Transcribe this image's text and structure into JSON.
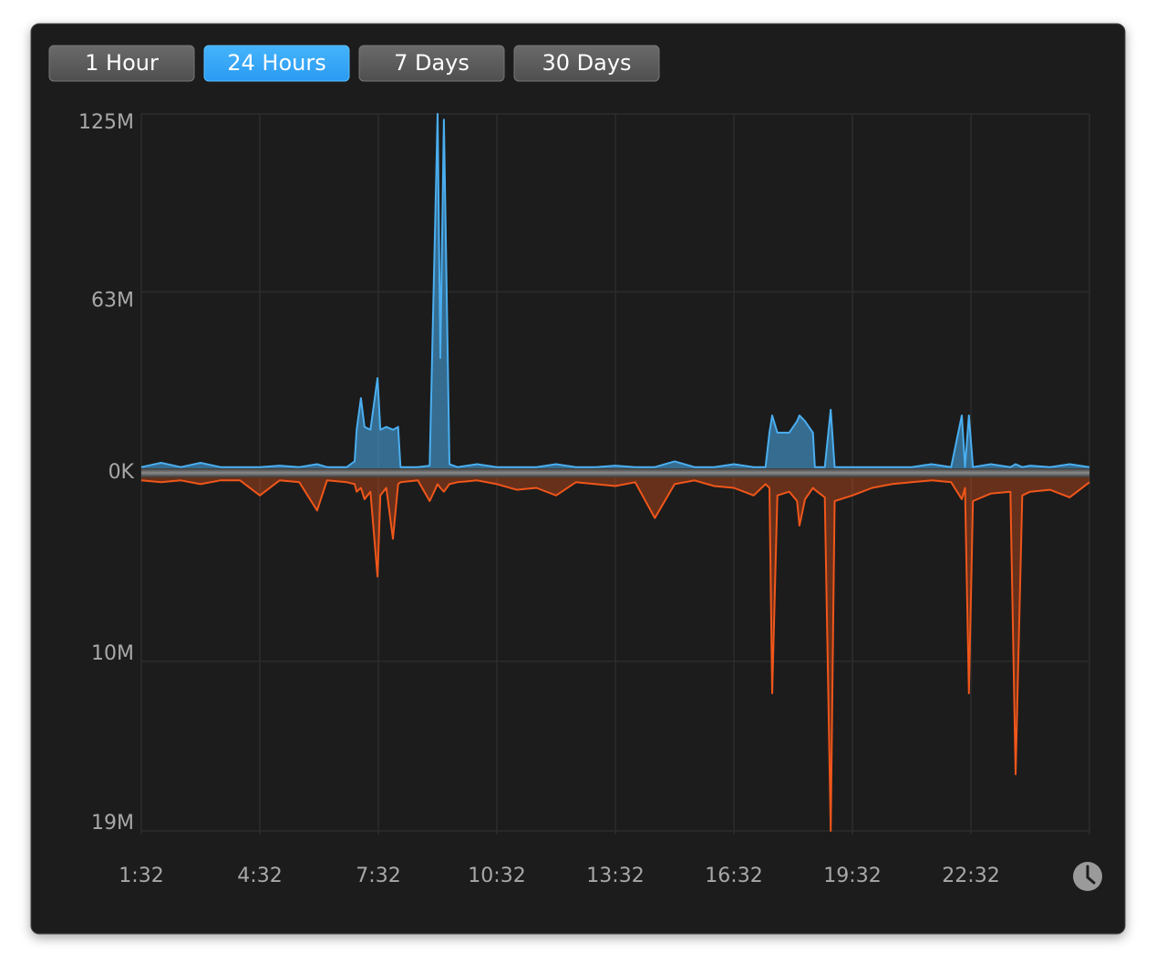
{
  "controls": {
    "buttons": [
      "1 Hour",
      "24 Hours",
      "7 Days",
      "30 Days"
    ],
    "selected": 1
  },
  "chart_data": {
    "type": "mirrored-area",
    "x": [
      0,
      0.5,
      1,
      1.5,
      2,
      2.5,
      3,
      3.5,
      4,
      4.45,
      4.7,
      5.2,
      5.4,
      5.45,
      5.56,
      5.65,
      5.8,
      5.98,
      6.05,
      6.2,
      6.37,
      6.5,
      6.56,
      7,
      7.3,
      7.5,
      7.57,
      7.66,
      7.8,
      8,
      8.5,
      9,
      9.5,
      10,
      10.5,
      11,
      11.5,
      12,
      12.5,
      13,
      13.5,
      14,
      14.5,
      15,
      15.5,
      15.8,
      15.9,
      15.97,
      16.1,
      16.4,
      16.6,
      16.66,
      16.8,
      17,
      17.05,
      17.3,
      17.45,
      17.55,
      18,
      18.5,
      19,
      19.5,
      20,
      20.5,
      20.77,
      20.85,
      20.95,
      21.05,
      21.5,
      22,
      22.13,
      22.3,
      22.5,
      23,
      23.5,
      24
    ],
    "xlim": [
      0,
      24
    ],
    "xticks": [
      {
        "value": 0,
        "label": "1:32"
      },
      {
        "value": 3,
        "label": "4:32"
      },
      {
        "value": 6,
        "label": "7:32"
      },
      {
        "value": 9,
        "label": "10:32"
      },
      {
        "value": 12,
        "label": "13:32"
      },
      {
        "value": 15,
        "label": "16:32"
      },
      {
        "value": 18,
        "label": "19:32"
      },
      {
        "value": 21,
        "label": "22:32"
      }
    ],
    "ylim": [
      0,
      125
    ],
    "yticks": [
      {
        "value": 0,
        "label": "0K"
      },
      {
        "value": 63,
        "label": "63M"
      },
      {
        "value": 125,
        "label": "125M"
      }
    ],
    "y2lim": [
      0,
      19
    ],
    "y2ticks": [
      {
        "value": 10,
        "label": "10M"
      },
      {
        "value": 19,
        "label": "19M"
      }
    ],
    "grid": true,
    "series": [
      {
        "color": "#4aaef0",
        "values": [
          2,
          3.5,
          2,
          3.5,
          2,
          2,
          2,
          2.5,
          2,
          3,
          2,
          2,
          4,
          15,
          26,
          16,
          15,
          33,
          15,
          16,
          15,
          16,
          2,
          2,
          2.5,
          125,
          40,
          123,
          3,
          2,
          3,
          2,
          2,
          2,
          3,
          2,
          2,
          2.5,
          2,
          2,
          4,
          2,
          2,
          3,
          2,
          2,
          14,
          20,
          14,
          14,
          18,
          20,
          18,
          14,
          2,
          2,
          22,
          2,
          2,
          2,
          2,
          2,
          3,
          2,
          20,
          2,
          20,
          2,
          3,
          2,
          3,
          2,
          2.5,
          2,
          3,
          2
        ]
      },
      {
        "color": "#f0561a",
        "axis": "y2",
        "values": [
          0.4,
          0.5,
          0.4,
          0.6,
          0.4,
          0.4,
          1.2,
          0.4,
          0.5,
          2,
          0.4,
          0.5,
          0.6,
          1,
          0.8,
          1.4,
          1,
          5.5,
          1.2,
          0.8,
          3.5,
          0.6,
          0.5,
          0.4,
          1.5,
          0.6,
          0.8,
          1,
          0.6,
          0.5,
          0.4,
          0.6,
          0.9,
          0.8,
          1.2,
          0.5,
          0.6,
          0.7,
          0.5,
          2.4,
          0.6,
          0.4,
          0.7,
          0.8,
          1.2,
          0.6,
          0.8,
          11.7,
          1.2,
          1,
          1.5,
          2.8,
          1.4,
          0.8,
          0.9,
          1.3,
          19,
          1.5,
          1.2,
          0.8,
          0.6,
          0.5,
          0.4,
          0.5,
          1.4,
          0.8,
          11.7,
          1.5,
          1.1,
          1,
          16,
          1.2,
          1,
          0.9,
          1.3,
          0.5
        ]
      }
    ]
  }
}
